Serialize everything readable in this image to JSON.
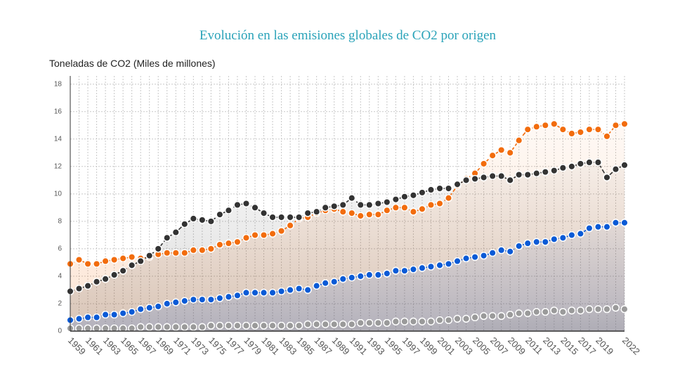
{
  "chart_data": {
    "type": "line",
    "title": "Evolución en las emisiones globales de CO2 por origen",
    "y_label": "Toneladas de CO2 (Miles de millones)",
    "categories": [
      "1959",
      null,
      "1961",
      null,
      "1963",
      null,
      "1965",
      null,
      "1967",
      null,
      "1969",
      null,
      "1971",
      null,
      "1973",
      null,
      "1975",
      null,
      "1977",
      null,
      "1979",
      null,
      "1981",
      null,
      "1983",
      null,
      "1985",
      null,
      "1987",
      null,
      "1989",
      null,
      "1991",
      null,
      "1993",
      null,
      "1995",
      null,
      "1997",
      null,
      "1999",
      null,
      "2001",
      null,
      "2003",
      null,
      "2005",
      null,
      "2007",
      null,
      "2009",
      null,
      "2011",
      null,
      "2013",
      null,
      "2015",
      null,
      "2017",
      null,
      "2019",
      null,
      null,
      "2022"
    ],
    "series": [
      {
        "color": "#f26c0d",
        "values": [
          4.9,
          5.2,
          4.9,
          4.9,
          5.1,
          5.2,
          5.3,
          5.4,
          5.3,
          5.4,
          5.6,
          5.7,
          5.7,
          5.7,
          5.9,
          5.9,
          6.0,
          6.3,
          6.4,
          6.5,
          6.8,
          7.0,
          7.0,
          7.1,
          7.3,
          7.7,
          8.2,
          8.3,
          8.6,
          8.8,
          8.9,
          8.7,
          8.6,
          8.4,
          8.5,
          8.5,
          8.8,
          9.0,
          9.0,
          8.7,
          8.9,
          9.2,
          9.3,
          9.7,
          10.6,
          11.1,
          11.5,
          12.2,
          12.8,
          13.2,
          13.0,
          13.9,
          14.7,
          14.9,
          15.0,
          15.1,
          14.7,
          14.4,
          14.5,
          14.7,
          14.7,
          14.2,
          15.0,
          15.1
        ]
      },
      {
        "color": "#333333",
        "values": [
          2.9,
          3.1,
          3.3,
          3.6,
          3.8,
          4.1,
          4.4,
          4.8,
          5.1,
          5.5,
          6.0,
          6.8,
          7.2,
          7.8,
          8.2,
          8.1,
          8.0,
          8.5,
          8.8,
          9.2,
          9.3,
          9.0,
          8.6,
          8.3,
          8.3,
          8.3,
          8.3,
          8.6,
          8.7,
          9.0,
          9.1,
          9.2,
          9.7,
          9.2,
          9.2,
          9.3,
          9.4,
          9.6,
          9.8,
          9.9,
          10.1,
          10.3,
          10.4,
          10.4,
          10.7,
          11.0,
          11.1,
          11.2,
          11.3,
          11.3,
          11.0,
          11.4,
          11.4,
          11.5,
          11.6,
          11.7,
          11.9,
          12.0,
          12.2,
          12.3,
          12.3,
          11.2,
          11.8,
          12.1
        ]
      },
      {
        "color": "#0a5ad6",
        "values": [
          0.8,
          0.9,
          1.0,
          1.0,
          1.2,
          1.2,
          1.3,
          1.4,
          1.6,
          1.7,
          1.8,
          2.0,
          2.1,
          2.2,
          2.3,
          2.3,
          2.3,
          2.4,
          2.5,
          2.6,
          2.8,
          2.8,
          2.8,
          2.8,
          2.9,
          3.0,
          3.1,
          3.0,
          3.3,
          3.5,
          3.6,
          3.8,
          3.9,
          4.0,
          4.1,
          4.1,
          4.2,
          4.4,
          4.4,
          4.5,
          4.6,
          4.7,
          4.8,
          4.9,
          5.1,
          5.3,
          5.4,
          5.5,
          5.7,
          5.9,
          5.8,
          6.2,
          6.4,
          6.5,
          6.5,
          6.7,
          6.8,
          7.0,
          7.1,
          7.5,
          7.6,
          7.6,
          7.9,
          7.9
        ]
      },
      {
        "color": "#9a9a9a",
        "values": [
          0.2,
          0.2,
          0.2,
          0.2,
          0.2,
          0.2,
          0.2,
          0.2,
          0.3,
          0.3,
          0.3,
          0.3,
          0.3,
          0.3,
          0.3,
          0.3,
          0.4,
          0.4,
          0.4,
          0.4,
          0.4,
          0.4,
          0.4,
          0.4,
          0.4,
          0.4,
          0.4,
          0.5,
          0.5,
          0.5,
          0.5,
          0.5,
          0.5,
          0.6,
          0.6,
          0.6,
          0.6,
          0.7,
          0.7,
          0.7,
          0.7,
          0.7,
          0.8,
          0.8,
          0.9,
          0.9,
          1.0,
          1.1,
          1.1,
          1.1,
          1.2,
          1.3,
          1.3,
          1.4,
          1.4,
          1.5,
          1.4,
          1.5,
          1.5,
          1.6,
          1.6,
          1.6,
          1.7,
          1.6
        ]
      }
    ],
    "ylim": [
      0,
      18.6
    ],
    "yticks": [
      0,
      2,
      4,
      6,
      8,
      10,
      12,
      14,
      16,
      18
    ],
    "grid": true
  }
}
